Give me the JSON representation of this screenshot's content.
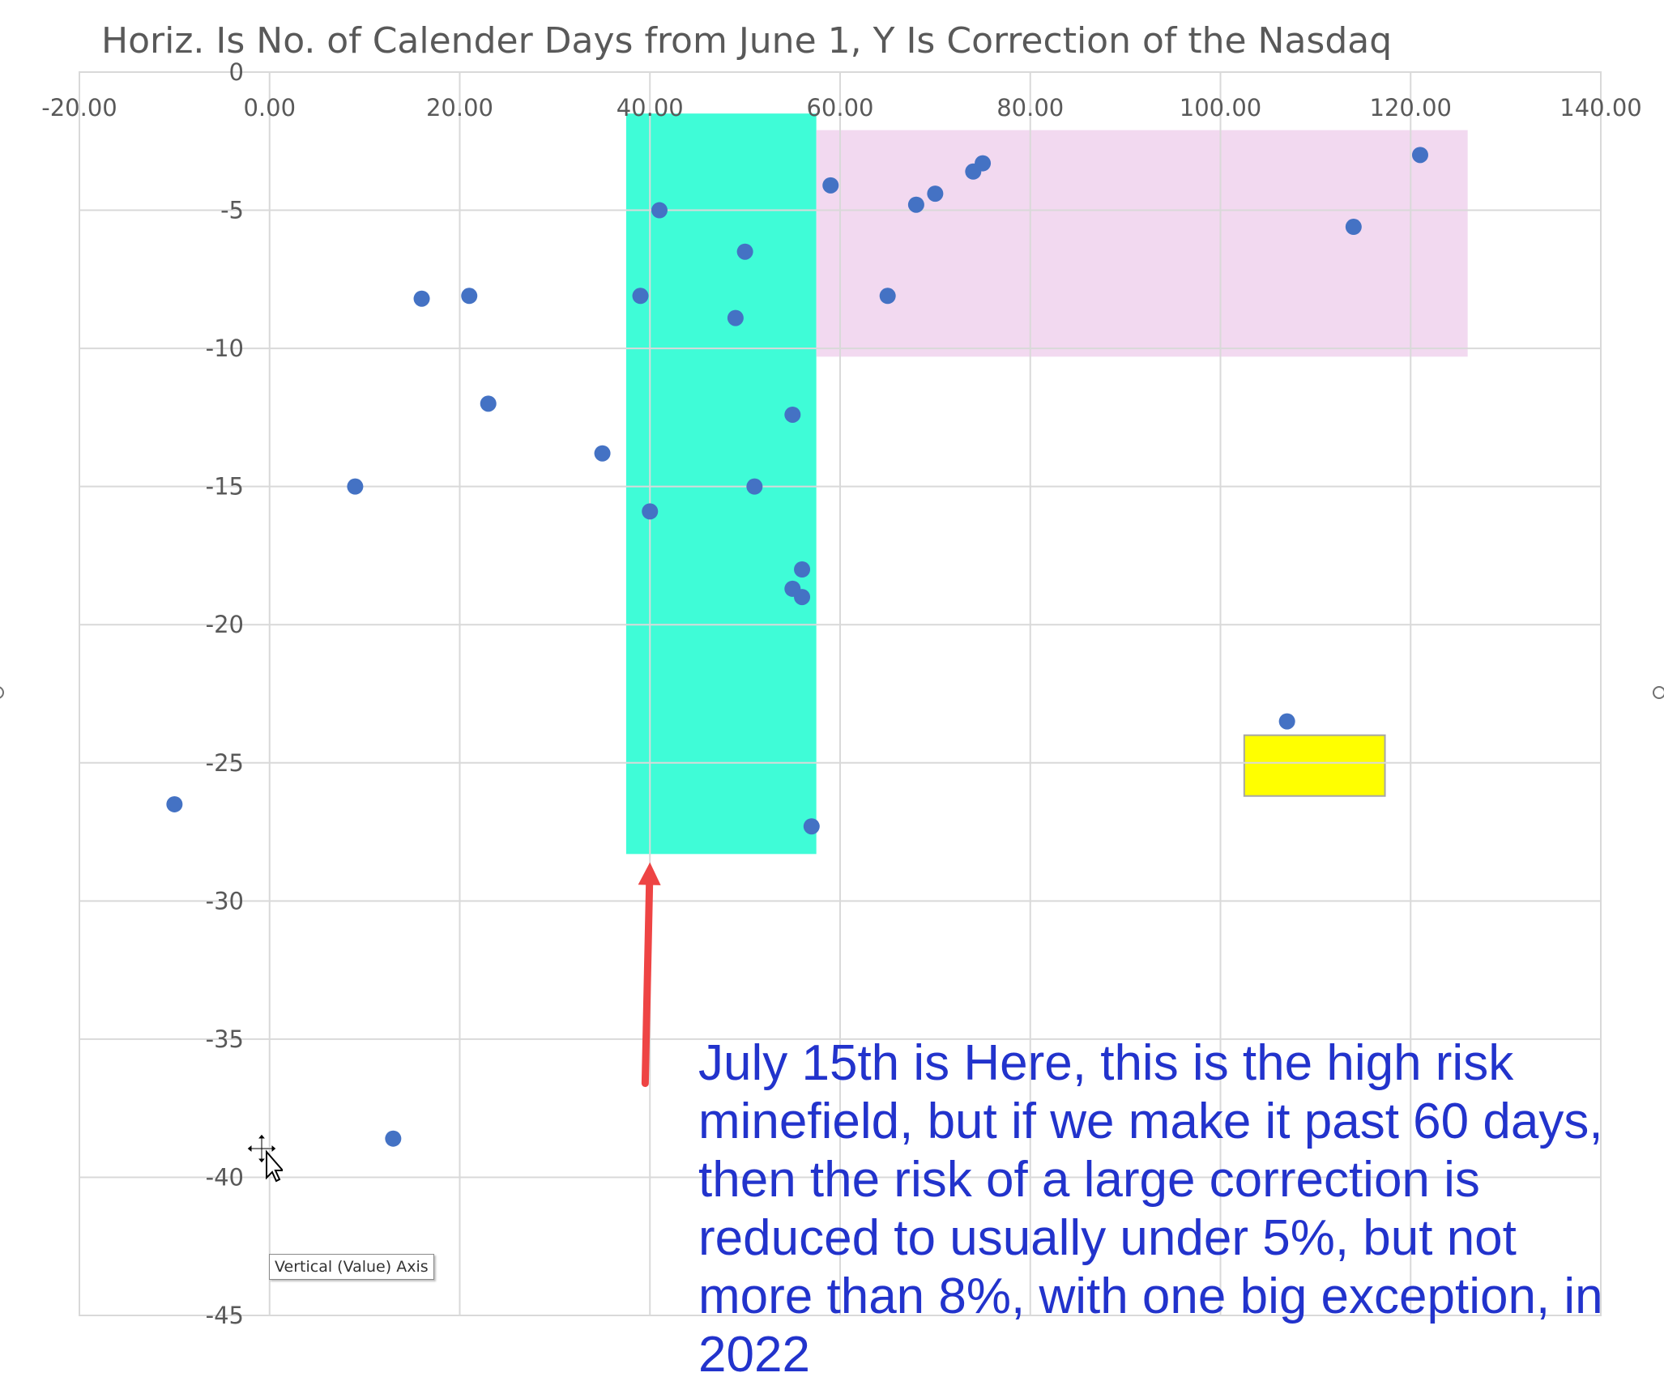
{
  "chart_data": {
    "type": "scatter",
    "title": "Horiz. Is No. of Calender Days from June 1, Y Is Correction of the Nasdaq",
    "xlim": [
      -20,
      140
    ],
    "ylim": [
      -45,
      0
    ],
    "x_ticks": [
      -20,
      0,
      20,
      40,
      60,
      80,
      100,
      120,
      140
    ],
    "x_tick_labels": [
      "-20.00",
      "0.00",
      "20.00",
      "40.00",
      "60.00",
      "80.00",
      "100.00",
      "120.00",
      "140.00"
    ],
    "y_ticks": [
      0,
      -5,
      -10,
      -15,
      -20,
      -25,
      -30,
      -35,
      -40,
      -45
    ],
    "y_tick_labels": [
      "0",
      "-5",
      "-10",
      "-15",
      "-20",
      "-25",
      "-30",
      "-35",
      "-40",
      "-45"
    ],
    "grid": true,
    "marker_color": "#4472c4",
    "x": [
      -10,
      9,
      13,
      16,
      21,
      23,
      35,
      39,
      40,
      41,
      49,
      50,
      51,
      55,
      55,
      56,
      56,
      57,
      59,
      65,
      68,
      70,
      74,
      75,
      107,
      114,
      121
    ],
    "y": [
      -26.5,
      -15,
      -38.6,
      -8.2,
      -8.1,
      -12,
      -13.8,
      -8.1,
      -15.9,
      -5,
      -8.9,
      -6.5,
      -15,
      -12.4,
      -18.7,
      -18,
      -19,
      -27.3,
      -4.1,
      -8.1,
      -4.8,
      -4.4,
      -3.6,
      -3.3,
      -23.5,
      -5.6,
      -3
    ],
    "highlights": [
      {
        "x": [
          37.5,
          57.5
        ],
        "y": [
          -28.3,
          -1.5
        ],
        "color": "#3ffcd7"
      },
      {
        "x": [
          57.5,
          126
        ],
        "y": [
          -10.3,
          -2.1
        ],
        "color": "#f2d9f0"
      },
      {
        "x": [
          102.5,
          117.3
        ],
        "y": [
          -26.2,
          -24
        ],
        "color": "#ffff00"
      }
    ],
    "arrow": {
      "from": [
        39.5,
        -36.6
      ],
      "to": [
        40,
        -28.6
      ],
      "color": "#ee4444"
    }
  },
  "annotation_text": "July 15th is Here, this is the high risk minefield, but if we make it past 60 days, then the risk of a large correction is reduced to usually under 5%, but not more than 8%, with one big exception, in 2022",
  "annotation_color": "#2233cc",
  "tooltip_text": "Vertical (Value) Axis",
  "cursor_icon": "move-cursor-icon"
}
